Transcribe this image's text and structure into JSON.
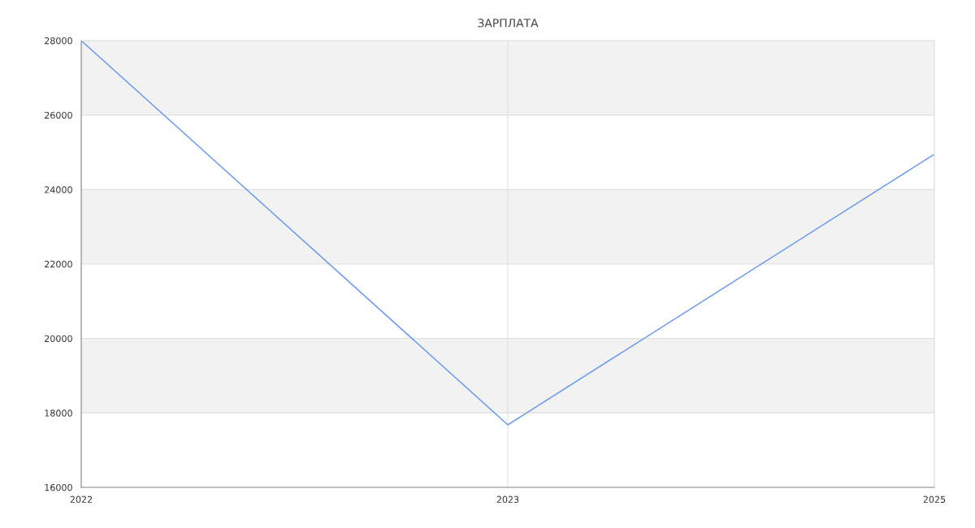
{
  "chart_data": {
    "type": "line",
    "title": "ЗАРПЛАТА",
    "categories": [
      "2022",
      "2023",
      "2025"
    ],
    "series": [
      {
        "color": "#6b9cf0",
        "values": [
          28000,
          17680,
          24950
        ]
      }
    ],
    "ylim": [
      16000,
      28000
    ],
    "yticks": [
      16000,
      18000,
      20000,
      22000,
      24000,
      26000,
      28000
    ],
    "grid": true,
    "marker": "none",
    "line_style": "solid",
    "bands": [
      {
        "axis": "y",
        "from": 18000,
        "to": 20000,
        "color": "#f2f2f2"
      },
      {
        "axis": "y",
        "from": 22000,
        "to": 24000,
        "color": "#f2f2f2"
      },
      {
        "axis": "y",
        "from": 26000,
        "to": 28000,
        "color": "#f2f2f2"
      }
    ]
  }
}
